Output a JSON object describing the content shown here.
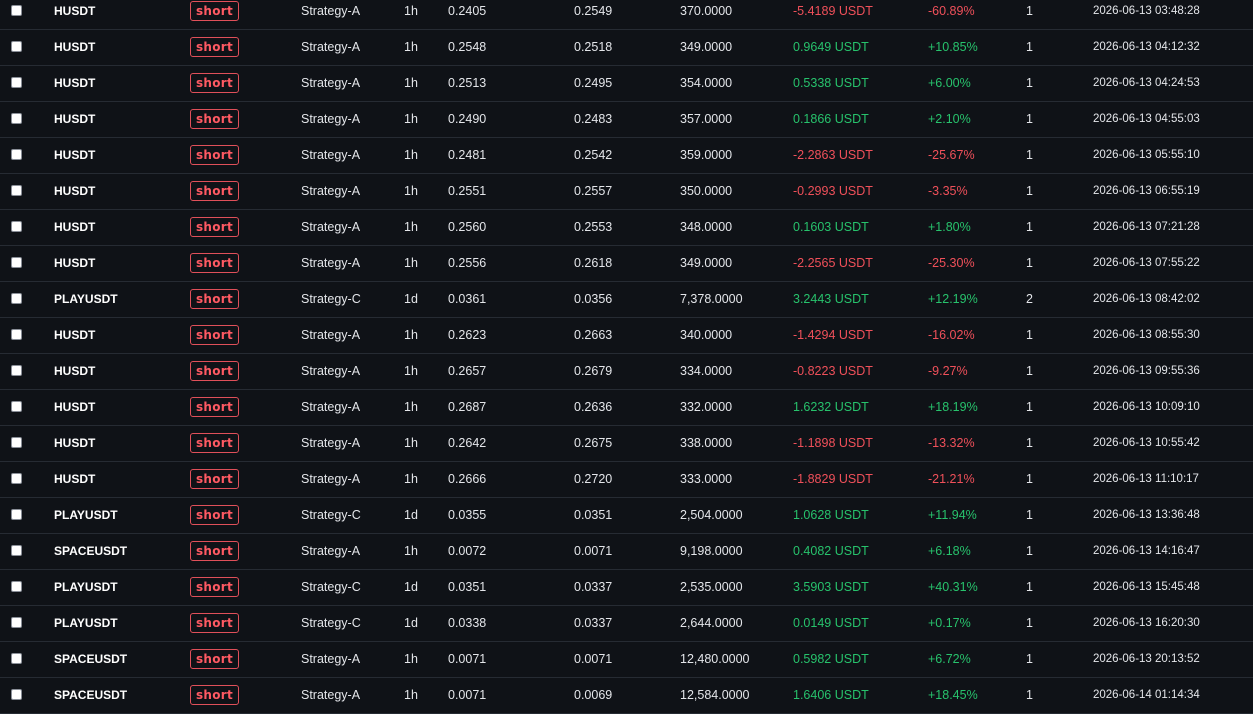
{
  "trades": [
    {
      "symbol": "HUSDT",
      "side": "short",
      "strategy": "Strategy-A",
      "timeframe": "1h",
      "entry": "0.2405",
      "exit": "0.2549",
      "qty": "370.0000",
      "pnl": "-5.4189 USDT",
      "pnl_pct": "-60.89%",
      "count": "1",
      "time": "2026-06-13 03:48:28"
    },
    {
      "symbol": "HUSDT",
      "side": "short",
      "strategy": "Strategy-A",
      "timeframe": "1h",
      "entry": "0.2548",
      "exit": "0.2518",
      "qty": "349.0000",
      "pnl": "0.9649 USDT",
      "pnl_pct": "+10.85%",
      "count": "1",
      "time": "2026-06-13 04:12:32"
    },
    {
      "symbol": "HUSDT",
      "side": "short",
      "strategy": "Strategy-A",
      "timeframe": "1h",
      "entry": "0.2513",
      "exit": "0.2495",
      "qty": "354.0000",
      "pnl": "0.5338 USDT",
      "pnl_pct": "+6.00%",
      "count": "1",
      "time": "2026-06-13 04:24:53"
    },
    {
      "symbol": "HUSDT",
      "side": "short",
      "strategy": "Strategy-A",
      "timeframe": "1h",
      "entry": "0.2490",
      "exit": "0.2483",
      "qty": "357.0000",
      "pnl": "0.1866 USDT",
      "pnl_pct": "+2.10%",
      "count": "1",
      "time": "2026-06-13 04:55:03"
    },
    {
      "symbol": "HUSDT",
      "side": "short",
      "strategy": "Strategy-A",
      "timeframe": "1h",
      "entry": "0.2481",
      "exit": "0.2542",
      "qty": "359.0000",
      "pnl": "-2.2863 USDT",
      "pnl_pct": "-25.67%",
      "count": "1",
      "time": "2026-06-13 05:55:10"
    },
    {
      "symbol": "HUSDT",
      "side": "short",
      "strategy": "Strategy-A",
      "timeframe": "1h",
      "entry": "0.2551",
      "exit": "0.2557",
      "qty": "350.0000",
      "pnl": "-0.2993 USDT",
      "pnl_pct": "-3.35%",
      "count": "1",
      "time": "2026-06-13 06:55:19"
    },
    {
      "symbol": "HUSDT",
      "side": "short",
      "strategy": "Strategy-A",
      "timeframe": "1h",
      "entry": "0.2560",
      "exit": "0.2553",
      "qty": "348.0000",
      "pnl": "0.1603 USDT",
      "pnl_pct": "+1.80%",
      "count": "1",
      "time": "2026-06-13 07:21:28"
    },
    {
      "symbol": "HUSDT",
      "side": "short",
      "strategy": "Strategy-A",
      "timeframe": "1h",
      "entry": "0.2556",
      "exit": "0.2618",
      "qty": "349.0000",
      "pnl": "-2.2565 USDT",
      "pnl_pct": "-25.30%",
      "count": "1",
      "time": "2026-06-13 07:55:22"
    },
    {
      "symbol": "PLAYUSDT",
      "side": "short",
      "strategy": "Strategy-C",
      "timeframe": "1d",
      "entry": "0.0361",
      "exit": "0.0356",
      "qty": "7,378.0000",
      "pnl": "3.2443 USDT",
      "pnl_pct": "+12.19%",
      "count": "2",
      "time": "2026-06-13 08:42:02"
    },
    {
      "symbol": "HUSDT",
      "side": "short",
      "strategy": "Strategy-A",
      "timeframe": "1h",
      "entry": "0.2623",
      "exit": "0.2663",
      "qty": "340.0000",
      "pnl": "-1.4294 USDT",
      "pnl_pct": "-16.02%",
      "count": "1",
      "time": "2026-06-13 08:55:30"
    },
    {
      "symbol": "HUSDT",
      "side": "short",
      "strategy": "Strategy-A",
      "timeframe": "1h",
      "entry": "0.2657",
      "exit": "0.2679",
      "qty": "334.0000",
      "pnl": "-0.8223 USDT",
      "pnl_pct": "-9.27%",
      "count": "1",
      "time": "2026-06-13 09:55:36"
    },
    {
      "symbol": "HUSDT",
      "side": "short",
      "strategy": "Strategy-A",
      "timeframe": "1h",
      "entry": "0.2687",
      "exit": "0.2636",
      "qty": "332.0000",
      "pnl": "1.6232 USDT",
      "pnl_pct": "+18.19%",
      "count": "1",
      "time": "2026-06-13 10:09:10"
    },
    {
      "symbol": "HUSDT",
      "side": "short",
      "strategy": "Strategy-A",
      "timeframe": "1h",
      "entry": "0.2642",
      "exit": "0.2675",
      "qty": "338.0000",
      "pnl": "-1.1898 USDT",
      "pnl_pct": "-13.32%",
      "count": "1",
      "time": "2026-06-13 10:55:42"
    },
    {
      "symbol": "HUSDT",
      "side": "short",
      "strategy": "Strategy-A",
      "timeframe": "1h",
      "entry": "0.2666",
      "exit": "0.2720",
      "qty": "333.0000",
      "pnl": "-1.8829 USDT",
      "pnl_pct": "-21.21%",
      "count": "1",
      "time": "2026-06-13 11:10:17"
    },
    {
      "symbol": "PLAYUSDT",
      "side": "short",
      "strategy": "Strategy-C",
      "timeframe": "1d",
      "entry": "0.0355",
      "exit": "0.0351",
      "qty": "2,504.0000",
      "pnl": "1.0628 USDT",
      "pnl_pct": "+11.94%",
      "count": "1",
      "time": "2026-06-13 13:36:48"
    },
    {
      "symbol": "SPACEUSDT",
      "side": "short",
      "strategy": "Strategy-A",
      "timeframe": "1h",
      "entry": "0.0072",
      "exit": "0.0071",
      "qty": "9,198.0000",
      "pnl": "0.4082 USDT",
      "pnl_pct": "+6.18%",
      "count": "1",
      "time": "2026-06-13 14:16:47"
    },
    {
      "symbol": "PLAYUSDT",
      "side": "short",
      "strategy": "Strategy-C",
      "timeframe": "1d",
      "entry": "0.0351",
      "exit": "0.0337",
      "qty": "2,535.0000",
      "pnl": "3.5903 USDT",
      "pnl_pct": "+40.31%",
      "count": "1",
      "time": "2026-06-13 15:45:48"
    },
    {
      "symbol": "PLAYUSDT",
      "side": "short",
      "strategy": "Strategy-C",
      "timeframe": "1d",
      "entry": "0.0338",
      "exit": "0.0337",
      "qty": "2,644.0000",
      "pnl": "0.0149 USDT",
      "pnl_pct": "+0.17%",
      "count": "1",
      "time": "2026-06-13 16:20:30"
    },
    {
      "symbol": "SPACEUSDT",
      "side": "short",
      "strategy": "Strategy-A",
      "timeframe": "1h",
      "entry": "0.0071",
      "exit": "0.0071",
      "qty": "12,480.0000",
      "pnl": "0.5982 USDT",
      "pnl_pct": "+6.72%",
      "count": "1",
      "time": "2026-06-13 20:13:52"
    },
    {
      "symbol": "SPACEUSDT",
      "side": "short",
      "strategy": "Strategy-A",
      "timeframe": "1h",
      "entry": "0.0071",
      "exit": "0.0069",
      "qty": "12,584.0000",
      "pnl": "1.6406 USDT",
      "pnl_pct": "+18.45%",
      "count": "1",
      "time": "2026-06-14 01:14:34"
    }
  ],
  "colors": {
    "positive": "#27c26c",
    "negative": "#f0505a",
    "side_short": "#ff5a63",
    "background": "#0f1217",
    "row_border": "#262b33"
  }
}
